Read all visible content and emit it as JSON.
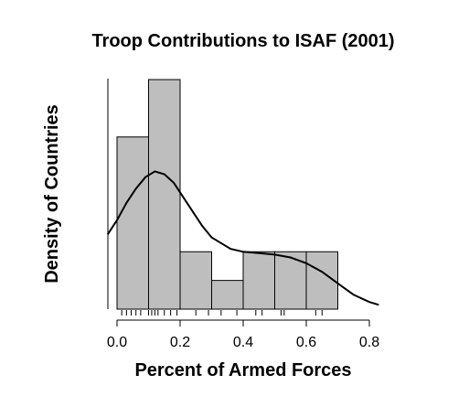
{
  "chart_data": {
    "type": "histogram",
    "title": "Troop Contributions to ISAF (2001)",
    "xlabel": "Percent of Armed Forces",
    "ylabel": "Density of Countries",
    "xlim": [
      0,
      0.8
    ],
    "ylim": [
      0,
      8
    ],
    "xticks": [
      0.0,
      0.2,
      0.4,
      0.6,
      0.8
    ],
    "xtick_labels": [
      "0.0",
      "0.2",
      "0.4",
      "0.6",
      "0.8"
    ],
    "grid": false,
    "bins": [
      {
        "x0": 0.0,
        "x1": 0.1,
        "density": 6.0
      },
      {
        "x0": 0.1,
        "x1": 0.2,
        "density": 8.0
      },
      {
        "x0": 0.2,
        "x1": 0.3,
        "density": 2.0
      },
      {
        "x0": 0.3,
        "x1": 0.4,
        "density": 1.0
      },
      {
        "x0": 0.4,
        "x1": 0.5,
        "density": 2.0
      },
      {
        "x0": 0.5,
        "x1": 0.6,
        "density": 2.0
      },
      {
        "x0": 0.6,
        "x1": 0.7,
        "density": 2.0
      }
    ],
    "density_curve": {
      "x": [
        -0.03,
        0.0,
        0.03,
        0.06,
        0.09,
        0.12,
        0.15,
        0.18,
        0.21,
        0.24,
        0.27,
        0.3,
        0.33,
        0.36,
        0.4,
        0.45,
        0.5,
        0.55,
        0.6,
        0.65,
        0.7,
        0.75,
        0.8,
        0.83
      ],
      "y": [
        2.6,
        3.1,
        3.7,
        4.2,
        4.6,
        4.8,
        4.7,
        4.4,
        3.9,
        3.4,
        2.9,
        2.5,
        2.3,
        2.1,
        2.0,
        1.95,
        1.9,
        1.8,
        1.6,
        1.3,
        0.9,
        0.5,
        0.25,
        0.15
      ]
    },
    "rug": [
      0.015,
      0.03,
      0.045,
      0.06,
      0.075,
      0.1,
      0.11,
      0.12,
      0.13,
      0.15,
      0.17,
      0.19,
      0.25,
      0.29,
      0.33,
      0.38,
      0.44,
      0.46,
      0.52,
      0.53,
      0.63,
      0.65
    ],
    "colors": {
      "bar_fill": "#bebebe",
      "bar_stroke": "#000000",
      "curve": "#000000",
      "text": "#000000"
    }
  }
}
